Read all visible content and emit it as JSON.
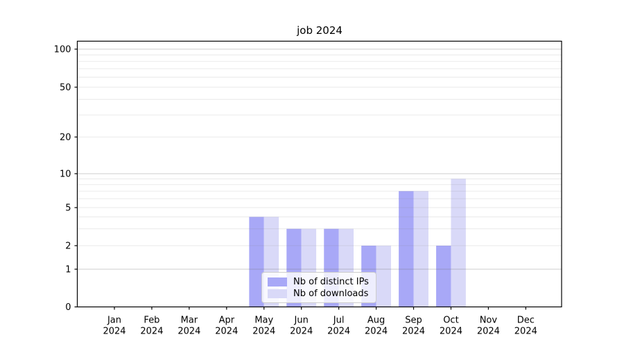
{
  "chart_data": {
    "type": "bar",
    "title": "job 2024",
    "categories": [
      "Jan 2024",
      "Feb 2024",
      "Mar 2024",
      "Apr 2024",
      "May 2024",
      "Jun 2024",
      "Jul 2024",
      "Aug 2024",
      "Sep 2024",
      "Oct 2024",
      "Nov 2024",
      "Dec 2024"
    ],
    "x_tick_top": [
      "Jan",
      "Feb",
      "Mar",
      "Apr",
      "May",
      "Jun",
      "Jul",
      "Aug",
      "Sep",
      "Oct",
      "Nov",
      "Dec"
    ],
    "x_tick_bottom": "2024",
    "series": [
      {
        "name": "Nb of distinct IPs",
        "color": "#a8a8f7",
        "values": [
          0,
          0,
          0,
          0,
          4,
          3,
          3,
          2,
          7,
          2,
          0,
          0
        ]
      },
      {
        "name": "Nb of downloads",
        "color": "#d9d9f8",
        "values": [
          0,
          0,
          0,
          0,
          4,
          3,
          3,
          2,
          7,
          9,
          0,
          0
        ]
      }
    ],
    "xlabel": "",
    "ylabel": "",
    "yscale": "log above 1, linear 0-1",
    "y_tick_labels": [
      "0",
      "1",
      "2",
      "5",
      "10",
      "20",
      "50",
      "100"
    ],
    "y_ticks": [
      0,
      1,
      2,
      5,
      10,
      20,
      50,
      100
    ],
    "y_minor_grid": [
      2,
      3,
      4,
      5,
      6,
      7,
      8,
      9,
      20,
      30,
      40,
      50,
      60,
      70,
      80,
      90
    ],
    "y_major_grid": [
      1,
      10,
      100
    ],
    "ylim": [
      0,
      115
    ],
    "grid": true,
    "legend_position": "lower center inside plot",
    "colors": {
      "bar_distinct_ips": "#a8a8f7",
      "bar_downloads": "#d9d9f8",
      "axis": "#000000",
      "grid_minor": "#ececec",
      "grid_major": "#cfcfcf",
      "background": "#ffffff"
    }
  },
  "legend": {
    "items": [
      {
        "label": "Nb of distinct IPs"
      },
      {
        "label": "Nb of downloads"
      }
    ]
  }
}
